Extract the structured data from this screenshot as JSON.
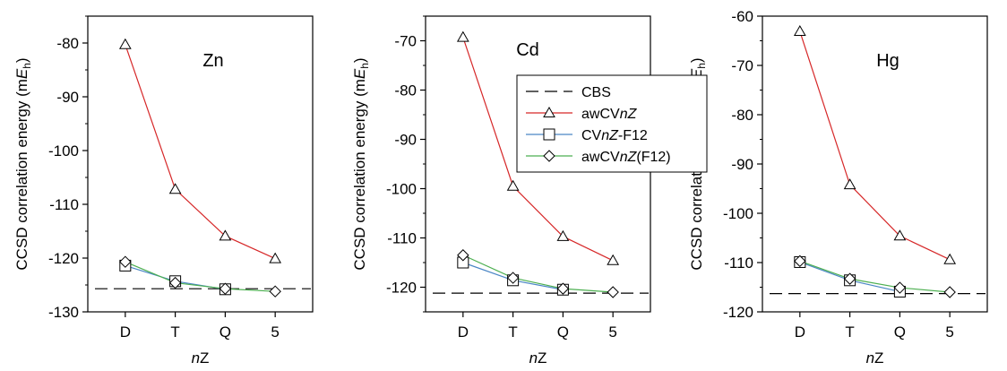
{
  "figure": {
    "ylabel_prefix": "CCSD correlation energy (m",
    "ylabel_var": "E",
    "ylabel_sub": "h",
    "ylabel_suffix": ")",
    "xlabel_var": "n",
    "xlabel_rest": "Z"
  },
  "legend": {
    "placement": "inside panel 2, right",
    "entries": [
      {
        "key": "cbs",
        "parts": [
          {
            "t": "CBS",
            "i": false
          }
        ]
      },
      {
        "key": "awcv",
        "parts": [
          {
            "t": "awCV",
            "i": false
          },
          {
            "t": "nZ",
            "i": true
          }
        ]
      },
      {
        "key": "f12",
        "parts": [
          {
            "t": "CV",
            "i": false
          },
          {
            "t": "nZ",
            "i": true
          },
          {
            "t": "-F12",
            "i": false
          }
        ]
      },
      {
        "key": "awf12",
        "parts": [
          {
            "t": "awCV",
            "i": false
          },
          {
            "t": "nZ",
            "i": true
          },
          {
            "t": "(F12)",
            "i": false
          }
        ]
      }
    ]
  },
  "colors": {
    "awcv": "#d62728",
    "f12": "#4a86c5",
    "awf12": "#4caf50",
    "cbs": "#000000"
  },
  "chart_data": [
    {
      "type": "line",
      "label": "Zn",
      "categories": [
        "D",
        "T",
        "Q",
        "5"
      ],
      "ylim": [
        -130,
        -75
      ],
      "yticks": [
        -80,
        -90,
        -100,
        -110,
        -120,
        -130
      ],
      "grid": false,
      "series": [
        {
          "name": "awCVnZ",
          "key": "awcv",
          "marker": "triangle",
          "values": [
            -80.3,
            -107.2,
            -115.9,
            -120.1
          ]
        },
        {
          "name": "CVnZ-F12",
          "key": "f12",
          "marker": "square",
          "values": [
            -121.4,
            -124.3,
            -125.8,
            null
          ]
        },
        {
          "name": "awCVnZ(F12)",
          "key": "awf12",
          "marker": "diamond",
          "values": [
            -120.7,
            -124.6,
            -125.7,
            -126.2
          ]
        }
      ],
      "cbs": -125.7
    },
    {
      "type": "line",
      "label": "Cd",
      "categories": [
        "D",
        "T",
        "Q",
        "5"
      ],
      "ylim": [
        -125,
        -65
      ],
      "yticks": [
        -70,
        -80,
        -90,
        -100,
        -110,
        -120
      ],
      "grid": false,
      "series": [
        {
          "name": "awCVnZ",
          "key": "awcv",
          "marker": "triangle",
          "values": [
            -69.3,
            -99.5,
            -109.7,
            -114.6
          ]
        },
        {
          "name": "CVnZ-F12",
          "key": "f12",
          "marker": "square",
          "values": [
            -115.0,
            -118.6,
            -120.5,
            null
          ]
        },
        {
          "name": "awCVnZ(F12)",
          "key": "awf12",
          "marker": "diamond",
          "values": [
            -113.5,
            -118.1,
            -120.3,
            -121.0
          ]
        }
      ],
      "cbs": -121.2
    },
    {
      "type": "line",
      "label": "Hg",
      "categories": [
        "D",
        "T",
        "Q",
        "5"
      ],
      "ylim": [
        -120,
        -60
      ],
      "yticks": [
        -60,
        -70,
        -80,
        -90,
        -100,
        -110,
        -120
      ],
      "grid": false,
      "series": [
        {
          "name": "awCVnZ",
          "key": "awcv",
          "marker": "triangle",
          "values": [
            -63.1,
            -94.2,
            -104.6,
            -109.4
          ]
        },
        {
          "name": "CVnZ-F12",
          "key": "f12",
          "marker": "square",
          "values": [
            -109.9,
            -113.6,
            -115.9,
            null
          ]
        },
        {
          "name": "awCVnZ(F12)",
          "key": "awf12",
          "marker": "diamond",
          "values": [
            -109.7,
            -113.3,
            -115.1,
            -116.0
          ]
        }
      ],
      "cbs": -116.3
    }
  ]
}
